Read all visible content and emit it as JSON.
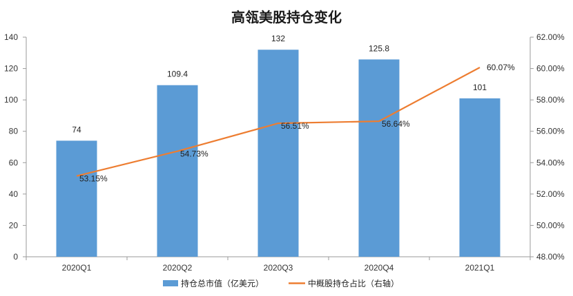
{
  "chart_data": {
    "type": "bar",
    "title": "高瓴美股持仓变化",
    "categories": [
      "2020Q1",
      "2020Q2",
      "2020Q3",
      "2020Q4",
      "2021Q1"
    ],
    "series": [
      {
        "name": "持仓总市值（亿美元）",
        "type": "bar",
        "axis": "left",
        "color": "#5b9bd5",
        "values": [
          74,
          109.4,
          132,
          125.8,
          101
        ],
        "labels": [
          "74",
          "109.4",
          "132",
          "125.8",
          "101"
        ]
      },
      {
        "name": "中概股持仓占比（右轴）",
        "type": "line",
        "axis": "right",
        "color": "#ed7d31",
        "values": [
          53.15,
          54.73,
          56.51,
          56.64,
          60.07
        ],
        "labels": [
          "53.15%",
          "54.73%",
          "56.51%",
          "56.64%",
          "60.07%"
        ]
      }
    ],
    "y_left": {
      "lim": [
        0,
        140
      ],
      "ticks": [
        "0",
        "20",
        "40",
        "60",
        "80",
        "100",
        "120",
        "140"
      ]
    },
    "y_right": {
      "lim": [
        48,
        62
      ],
      "ticks": [
        "48.00%",
        "50.00%",
        "52.00%",
        "54.00%",
        "56.00%",
        "58.00%",
        "60.00%",
        "62.00%"
      ]
    },
    "grid": false,
    "legend": "bottom"
  }
}
